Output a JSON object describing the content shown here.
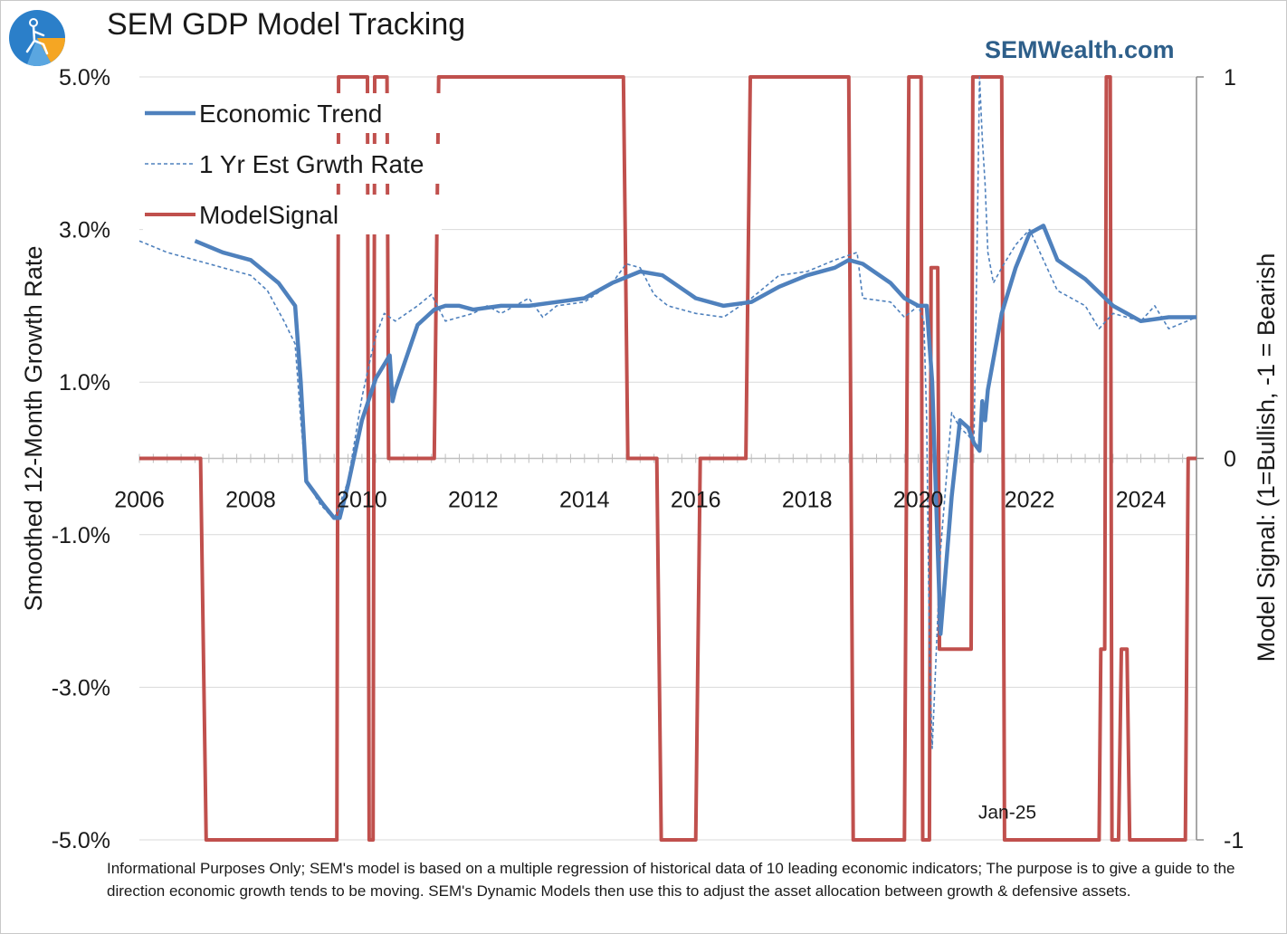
{
  "header": {
    "title": "SEM GDP Model Tracking",
    "brand": "SEMWealth.com"
  },
  "footnote": "Informational Purposes Only; SEM's model is based on a multiple regression of historical data of 10 leading economic indicators; The purpose is to give a guide to the direction economic growth tends to be moving. SEM's Dynamic Models then use this to adjust the asset allocation between growth & defensive assets.",
  "colors": {
    "economic_trend": "#4f81bd",
    "growth_rate": "#4f81bd",
    "model_signal": "#c0504d",
    "grid": "#d9d9d9",
    "brand": "#2e5f8a"
  },
  "chart_data": {
    "type": "line",
    "title": "SEM GDP Model Tracking",
    "ylabel": "Smoothed 12-Month Growth Rate",
    "y2label": "Model Signal: (1=Bullish, -1 = Bearish",
    "ylim": [
      -5.0,
      5.0
    ],
    "y2lim": [
      -1,
      1
    ],
    "xlim": [
      2006,
      2025
    ],
    "y_ticks": [
      "5.0%",
      "3.0%",
      "1.0%",
      "-1.0%",
      "-3.0%",
      "-5.0%"
    ],
    "y_tick_values": [
      5,
      3,
      1,
      -1,
      -3,
      -5
    ],
    "y2_ticks": [
      "1",
      "0",
      "-1"
    ],
    "y2_tick_values": [
      1,
      0,
      -1
    ],
    "x_ticks": [
      "2006",
      "2008",
      "2010",
      "2012",
      "2014",
      "2016",
      "2018",
      "2020",
      "2022",
      "2024"
    ],
    "x_tick_values": [
      2006,
      2008,
      2010,
      2012,
      2014,
      2016,
      2018,
      2020,
      2022,
      2024
    ],
    "grid": true,
    "legend_position": "top-left",
    "annotations": [
      {
        "text": "Jan-25",
        "x": 2021.6,
        "y": -4.7
      }
    ],
    "series": [
      {
        "name": "Economic Trend",
        "axis": "left",
        "style": "solid",
        "x": [
          2007.0,
          2007.5,
          2008.0,
          2008.5,
          2008.8,
          2008.9,
          2009.0,
          2009.3,
          2009.5,
          2009.6,
          2009.75,
          2010.0,
          2010.25,
          2010.5,
          2010.55,
          2010.6,
          2011.0,
          2011.3,
          2011.5,
          2011.75,
          2012.0,
          2012.5,
          2013.0,
          2013.5,
          2014.0,
          2014.5,
          2015.0,
          2015.4,
          2016.0,
          2016.5,
          2017.0,
          2017.5,
          2018.0,
          2018.5,
          2018.75,
          2019.0,
          2019.5,
          2019.75,
          2020.0,
          2020.15,
          2020.25,
          2020.4,
          2020.6,
          2020.75,
          2020.9,
          2021.0,
          2021.1,
          2021.15,
          2021.2,
          2021.25,
          2021.5,
          2021.75,
          2022.0,
          2022.25,
          2022.5,
          2023.0,
          2023.5,
          2024.0,
          2024.5,
          2025.0
        ],
        "y": [
          2.85,
          2.7,
          2.6,
          2.3,
          2.0,
          1.0,
          -0.3,
          -0.6,
          -0.78,
          -0.78,
          -0.35,
          0.5,
          1.05,
          1.35,
          0.75,
          0.9,
          1.75,
          1.95,
          2.0,
          2.0,
          1.95,
          2.0,
          2.0,
          2.05,
          2.1,
          2.3,
          2.45,
          2.4,
          2.1,
          2.0,
          2.05,
          2.25,
          2.4,
          2.5,
          2.6,
          2.55,
          2.3,
          2.1,
          2.0,
          2.0,
          1.0,
          -2.3,
          -0.5,
          0.5,
          0.4,
          0.2,
          0.1,
          0.75,
          0.5,
          0.9,
          1.9,
          2.5,
          2.95,
          3.05,
          2.6,
          2.35,
          2.0,
          1.8,
          1.85,
          1.85
        ]
      },
      {
        "name": "1 Yr Est Grwth Rate",
        "axis": "left",
        "style": "dashed",
        "x": [
          2006.0,
          2006.5,
          2007.0,
          2007.5,
          2008.0,
          2008.3,
          2008.6,
          2008.8,
          2008.9,
          2009.0,
          2009.25,
          2009.5,
          2009.75,
          2010.0,
          2010.15,
          2010.25,
          2010.4,
          2010.6,
          2011.0,
          2011.25,
          2011.5,
          2011.75,
          2012.0,
          2012.25,
          2012.5,
          2013.0,
          2013.25,
          2013.5,
          2014.0,
          2014.5,
          2014.75,
          2015.0,
          2015.25,
          2015.5,
          2016.0,
          2016.5,
          2017.0,
          2017.5,
          2018.0,
          2018.5,
          2018.9,
          2019.0,
          2019.5,
          2019.75,
          2020.0,
          2020.1,
          2020.15,
          2020.2,
          2020.25,
          2020.4,
          2020.6,
          2020.75,
          2020.9,
          2021.0,
          2021.05,
          2021.1,
          2021.15,
          2021.2,
          2021.25,
          2021.35,
          2021.5,
          2021.75,
          2022.0,
          2022.25,
          2022.5,
          2023.0,
          2023.25,
          2023.5,
          2024.0,
          2024.25,
          2024.5,
          2025.0
        ],
        "y": [
          2.85,
          2.7,
          2.6,
          2.5,
          2.4,
          2.2,
          1.8,
          1.5,
          0.5,
          -0.3,
          -0.6,
          -0.8,
          -0.3,
          0.8,
          1.3,
          1.6,
          1.9,
          1.8,
          2.0,
          2.15,
          1.8,
          1.85,
          1.9,
          2.0,
          1.9,
          2.1,
          1.85,
          2.0,
          2.05,
          2.3,
          2.55,
          2.5,
          2.15,
          2.0,
          1.9,
          1.85,
          2.1,
          2.4,
          2.45,
          2.6,
          2.7,
          2.1,
          2.05,
          1.85,
          2.0,
          1.8,
          0.5,
          -2.5,
          -3.8,
          -1.2,
          0.6,
          0.4,
          0.3,
          0.2,
          2.5,
          5.0,
          4.2,
          3.6,
          2.7,
          2.3,
          2.5,
          2.8,
          3.0,
          2.6,
          2.2,
          2.0,
          1.7,
          1.9,
          1.8,
          2.0,
          1.7,
          1.85
        ]
      },
      {
        "name": "ModelSignal",
        "axis": "right",
        "style": "solid-thick",
        "x": [
          2006.0,
          2007.1,
          2007.2,
          2009.55,
          2009.58,
          2010.1,
          2010.13,
          2010.2,
          2010.23,
          2010.45,
          2010.48,
          2011.3,
          2011.38,
          2014.7,
          2014.78,
          2015.3,
          2015.38,
          2016.0,
          2016.08,
          2016.9,
          2016.98,
          2018.75,
          2018.83,
          2019.75,
          2019.83,
          2020.05,
          2020.08,
          2020.2,
          2020.23,
          2020.35,
          2020.38,
          2020.95,
          2020.98,
          2021.5,
          2021.55,
          2023.25,
          2023.28,
          2023.35,
          2023.38,
          2023.45,
          2023.48,
          2023.6,
          2023.65,
          2023.75,
          2023.8,
          2024.8,
          2024.85,
          2025.0
        ],
        "y": [
          0,
          0,
          -1,
          -1,
          1,
          1,
          -1,
          -1,
          1,
          1,
          0,
          0,
          1,
          1,
          0,
          0,
          -1,
          -1,
          0,
          0,
          1,
          1,
          -1,
          -1,
          1,
          1,
          -1,
          -1,
          0.5,
          0.5,
          -0.5,
          -0.5,
          1,
          1,
          -1,
          -1,
          -0.5,
          -0.5,
          1,
          1,
          -1,
          -1,
          -0.5,
          -0.5,
          -1,
          -1,
          0,
          0
        ]
      }
    ]
  }
}
